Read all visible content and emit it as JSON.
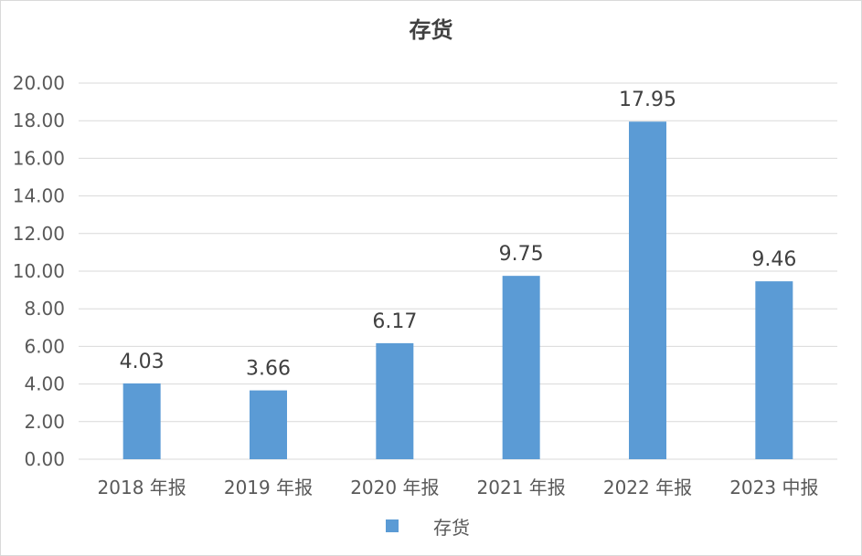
{
  "chart_data": {
    "type": "bar",
    "title": "存货",
    "categories": [
      "2018 年报",
      "2019 年报",
      "2020 年报",
      "2021 年报",
      "2022 年报",
      "2023 中报"
    ],
    "series": [
      {
        "name": "存货",
        "values": [
          4.03,
          3.66,
          6.17,
          9.75,
          17.95,
          9.46
        ],
        "color": "#5b9bd5"
      }
    ],
    "value_labels": [
      "4.03",
      "3.66",
      "6.17",
      "9.75",
      "17.95",
      "9.46"
    ],
    "yticks": [
      "0.00",
      "2.00",
      "4.00",
      "6.00",
      "8.00",
      "10.00",
      "12.00",
      "14.00",
      "16.00",
      "18.00",
      "20.00"
    ],
    "ylim": [
      0,
      20
    ],
    "grid": true,
    "legend_position": "bottom"
  }
}
